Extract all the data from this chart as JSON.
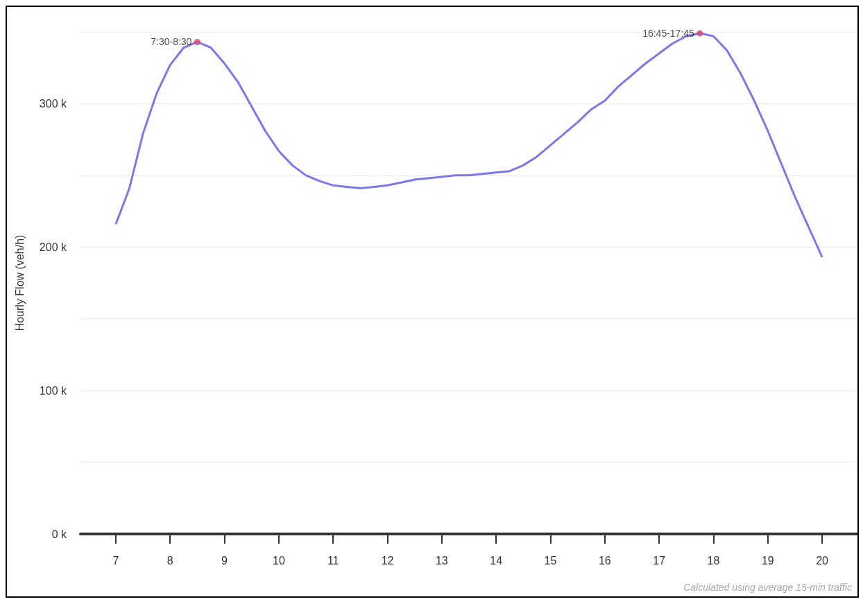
{
  "chart_data": {
    "type": "line",
    "ylabel": "Hourly Flow (veh/h)",
    "xlim": [
      6.35,
      20.65
    ],
    "xticks": [
      7,
      8,
      9,
      10,
      11,
      12,
      13,
      14,
      15,
      16,
      17,
      18,
      19,
      20
    ],
    "ylim": [
      0,
      350
    ],
    "yticks": [
      {
        "value": 0,
        "label": "0 k"
      },
      {
        "value": 50,
        "label": null
      },
      {
        "value": 100,
        "label": "100 k"
      },
      {
        "value": 150,
        "label": null
      },
      {
        "value": 200,
        "label": "200 k"
      },
      {
        "value": 250,
        "label": null
      },
      {
        "value": 300,
        "label": "300 k"
      },
      {
        "value": 350,
        "label": null
      }
    ],
    "grid": "y",
    "series": [
      {
        "color": "#7b78e8",
        "marker": "none",
        "x": [
          7,
          7.25,
          7.5,
          7.75,
          8,
          8.25,
          8.5,
          8.75,
          9,
          9.25,
          9.5,
          9.75,
          10,
          10.25,
          10.5,
          10.75,
          11,
          11.25,
          11.5,
          11.75,
          12,
          12.25,
          12.5,
          12.75,
          13,
          13.25,
          13.5,
          13.75,
          14,
          14.25,
          14.5,
          14.75,
          15,
          15.25,
          15.5,
          15.75,
          16,
          16.25,
          16.5,
          16.75,
          17,
          17.25,
          17.5,
          17.75,
          18,
          18.25,
          18.5,
          18.75,
          19,
          19.25,
          19.5,
          19.75,
          20
        ],
        "values": [
          216,
          241,
          279,
          307,
          327,
          339,
          343,
          339,
          328,
          315,
          298,
          281,
          267,
          257,
          250,
          246,
          243,
          242,
          241,
          242,
          243,
          245,
          247,
          248,
          249,
          250,
          250,
          251,
          252,
          253,
          257,
          263,
          271,
          279,
          287,
          296,
          302,
          312,
          320,
          328,
          335,
          342,
          347,
          349,
          347,
          337,
          321,
          302,
          281,
          258,
          235,
          214,
          193
        ]
      },
      {
        "type": "scatter",
        "color": "#d6456b",
        "marker": "circle",
        "x": [
          8.5,
          17.75
        ],
        "values": [
          343,
          349
        ]
      }
    ],
    "annotations": [
      {
        "text": "7:30-8:30",
        "x": 8.5,
        "y": 343
      },
      {
        "text": "16:45-17:45",
        "x": 17.75,
        "y": 349
      },
      "Calculated using average 15-min traffic"
    ]
  }
}
